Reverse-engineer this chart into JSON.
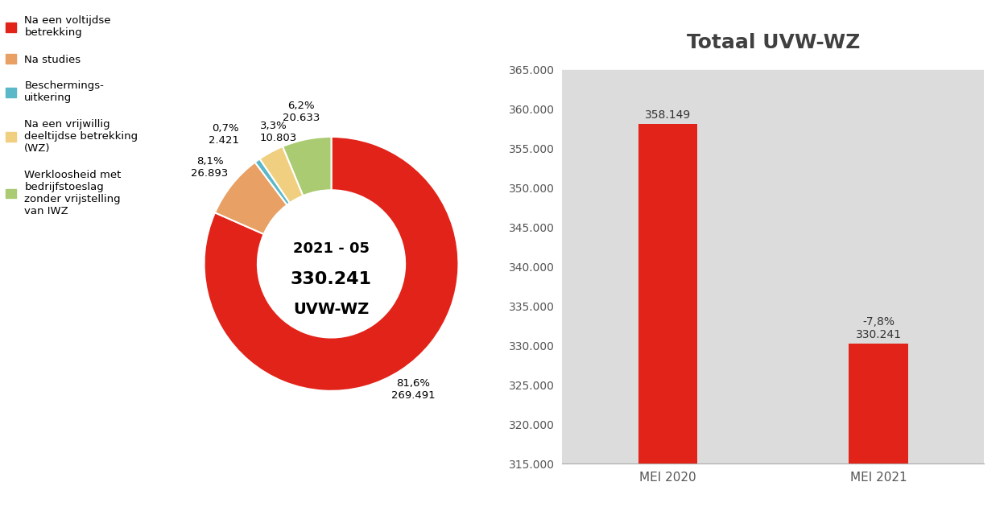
{
  "pie_values": [
    269491,
    26893,
    2421,
    10803,
    20633
  ],
  "pie_labels": [
    "Na een voltijdse\nbetrekking",
    "Na studies",
    "Beschermings-\nuitkering",
    "Na een vrijwillig\ndeeltijdse betrekking\n(WZ)",
    "Werkloosheid met\nbedrijfstoeslag\nzonder vrijstelling\nvan IWZ"
  ],
  "pie_colors": [
    "#E2231A",
    "#E8A064",
    "#5BB8C8",
    "#F0D080",
    "#AACB72"
  ],
  "pie_pcts": [
    "81,6%",
    "8,1%",
    "0,7%",
    "3,3%",
    "6,2%"
  ],
  "pie_counts": [
    "269.491",
    "26.893",
    "2.421",
    "10.803",
    "20.633"
  ],
  "donut_center_line1": "2021 - 05",
  "donut_center_line2": "330.241",
  "donut_center_line3": "UVW-WZ",
  "bar_categories": [
    "MEI 2020",
    "MEI 2021"
  ],
  "bar_values": [
    358149,
    330241
  ],
  "bar_color": "#E2231A",
  "bar_title": "Totaal UVW-WZ",
  "bar_ylim": [
    315000,
    366000
  ],
  "bar_yticks": [
    315000,
    320000,
    325000,
    330000,
    335000,
    340000,
    345000,
    350000,
    355000,
    360000,
    365000
  ],
  "bar_label1": "358.149",
  "bar_label2_line1": "-7,8%",
  "bar_label2_line2": "330.241",
  "bar_title_color": "#404040",
  "bar_tick_color": "#555555",
  "band_color": "#DCDCDC",
  "background_color": "#ffffff",
  "legend_colors": [
    "#E2231A",
    "#E8A064",
    "#5BB8C8",
    "#F0D080",
    "#AACB72"
  ],
  "legend_labels": [
    "Na een voltijdse\nbetrekking",
    "Na studies",
    "Beschermings-\nuitkering",
    "Na een vrijwillig\ndeeltijdse betrekking\n(WZ)",
    "Werkloosheid met\nbedrijfstoeslag\nzonder vrijstelling\nvan IWZ"
  ]
}
